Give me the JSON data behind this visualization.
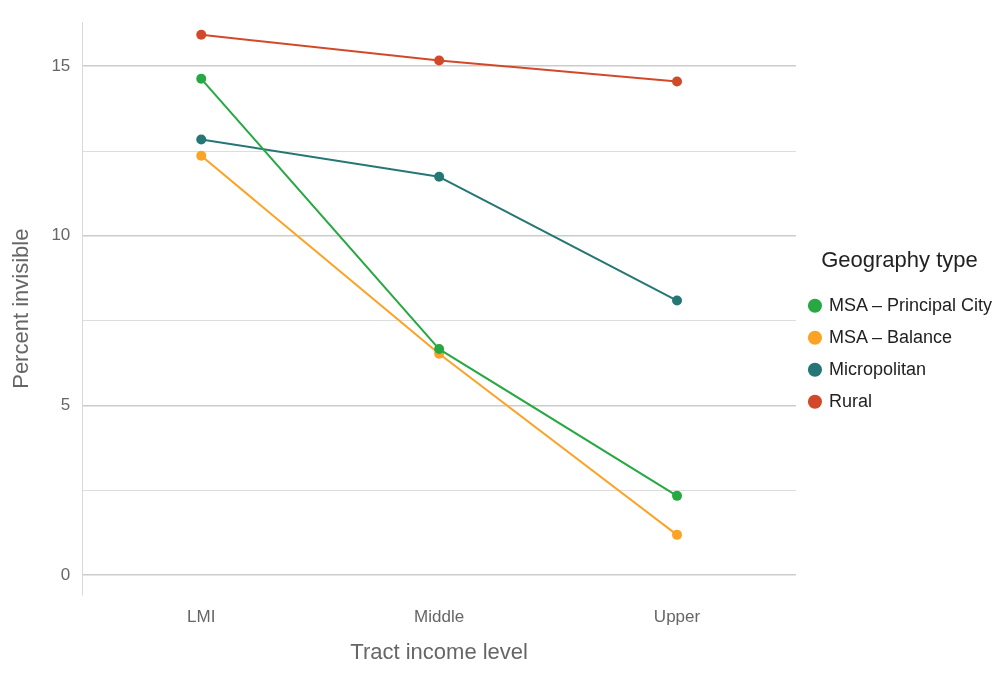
{
  "chart_data": {
    "type": "line",
    "xlabel": "Tract income level",
    "ylabel": "Percent invisible",
    "legend_title": "Geography type",
    "categories": [
      "LMI",
      "Middle",
      "Upper"
    ],
    "series": [
      {
        "name": "MSA – Principal City",
        "color": "#27a842",
        "values": [
          14.63,
          6.66,
          2.33
        ]
      },
      {
        "name": "MSA – Balance",
        "color": "#fca326",
        "values": [
          12.36,
          6.52,
          1.18
        ]
      },
      {
        "name": "Micropolitan",
        "color": "#267676",
        "values": [
          12.84,
          11.74,
          8.09
        ]
      },
      {
        "name": "Rural",
        "color": "#d2492a",
        "values": [
          15.93,
          15.17,
          14.55
        ]
      }
    ],
    "ylim": [
      -0.6,
      16.3
    ],
    "yticks": [
      0,
      {
        "value": 2.5,
        "label": null
      },
      5,
      {
        "value": 7.5,
        "label": null
      },
      10,
      {
        "value": 12.5,
        "label": null
      },
      15
    ],
    "grid": "y",
    "legend": "right",
    "marker": "circle",
    "line_style": "solid"
  }
}
